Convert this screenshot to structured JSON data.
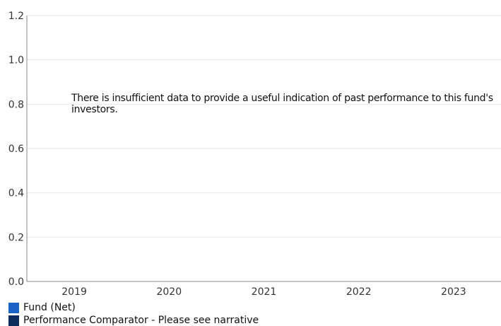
{
  "chart_data": {
    "type": "bar",
    "title": "",
    "xlabel": "",
    "ylabel": "",
    "categories": [
      "2019",
      "2020",
      "2021",
      "2022",
      "2023"
    ],
    "y_ticks": [
      "0.0",
      "0.2",
      "0.4",
      "0.6",
      "0.8",
      "1.0",
      "1.2"
    ],
    "ylim": [
      0,
      1.2
    ],
    "grid": true,
    "series": [
      {
        "name": "Fund (Net)",
        "color": "#1a63c4",
        "values": [
          null,
          null,
          null,
          null,
          null
        ]
      },
      {
        "name": "Performance Comparator - Please see narrative",
        "color": "#0d2a5c",
        "values": [
          null,
          null,
          null,
          null,
          null
        ]
      }
    ],
    "legend_placement": "bottom-left",
    "annotation": "There is insufficient data to provide a useful indication of past performance to this fund's investors."
  }
}
